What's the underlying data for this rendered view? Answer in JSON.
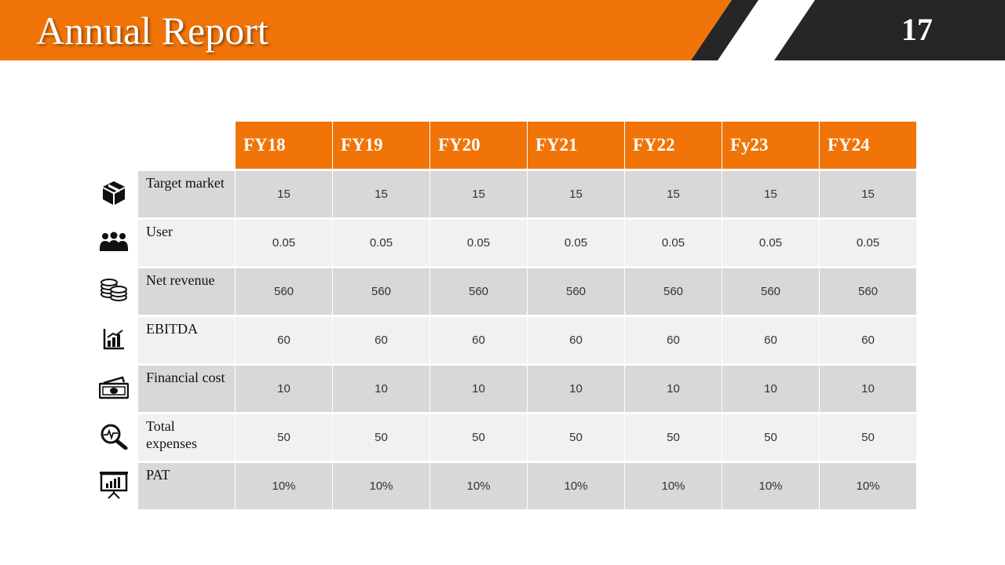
{
  "header": {
    "title": "Annual Report",
    "page_number": "17",
    "colors": {
      "accent": "#f07407",
      "dark": "#262626"
    }
  },
  "table": {
    "columns": [
      "FY18",
      "FY19",
      "FY20",
      "FY21",
      "FY22",
      "Fy23",
      "FY24"
    ],
    "rows": [
      {
        "icon": "box-icon",
        "label": "Target market",
        "values": [
          "15",
          "15",
          "15",
          "15",
          "15",
          "15",
          "15"
        ]
      },
      {
        "icon": "users-icon",
        "label": "User",
        "values": [
          "0.05",
          "0.05",
          "0.05",
          "0.05",
          "0.05",
          "0.05",
          "0.05"
        ]
      },
      {
        "icon": "coins-icon",
        "label": "Net revenue",
        "values": [
          "560",
          "560",
          "560",
          "560",
          "560",
          "560",
          "560"
        ]
      },
      {
        "icon": "bar-chart-icon",
        "label": "EBITDA",
        "values": [
          "60",
          "60",
          "60",
          "60",
          "60",
          "60",
          "60"
        ]
      },
      {
        "icon": "money-icon",
        "label": "Financial cost",
        "values": [
          "10",
          "10",
          "10",
          "10",
          "10",
          "10",
          "10"
        ]
      },
      {
        "icon": "magnifier-pulse-icon",
        "label": "Total expenses",
        "values": [
          "50",
          "50",
          "50",
          "50",
          "50",
          "50",
          "50"
        ]
      },
      {
        "icon": "presentation-board-icon",
        "label": "PAT",
        "values": [
          "10%",
          "10%",
          "10%",
          "10%",
          "10%",
          "10%",
          "10%"
        ]
      }
    ]
  }
}
